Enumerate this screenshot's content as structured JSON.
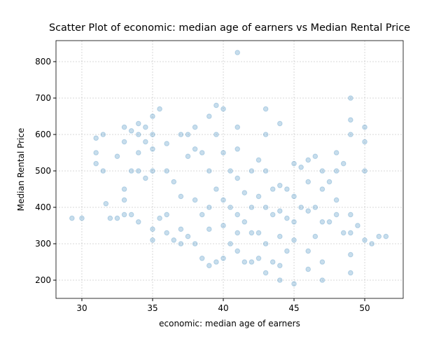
{
  "chart_data": {
    "type": "scatter",
    "title": "Scatter Plot of economic: median age of earners vs Median Rental Price",
    "x_label": "economic: median age of earners",
    "y_label": "Median Rental Price",
    "xlim": [
      28.17,
      52.72
    ],
    "ylim": [
      150,
      857.7
    ],
    "xticks": [
      30,
      35,
      40,
      45,
      50
    ],
    "yticks": [
      200,
      300,
      400,
      500,
      600,
      700,
      800
    ],
    "grid": true,
    "color": "#1f77b4",
    "alpha": 0.25,
    "series": [
      {
        "name": "Median Rental Price",
        "color": "#1f77b4",
        "x": [
          29.3,
          30,
          31,
          31,
          31,
          31.5,
          31.5,
          31.7,
          32,
          32.5,
          32.5,
          33,
          33,
          33,
          33,
          33,
          33.5,
          33.5,
          33.5,
          34,
          34,
          34,
          34,
          34,
          34.5,
          34.5,
          34.5,
          35,
          35,
          35,
          35,
          35,
          35,
          35.5,
          35.5,
          36,
          36,
          36,
          36,
          36.5,
          36.5,
          37,
          37,
          37,
          37,
          37.5,
          37.5,
          37.5,
          38,
          38,
          38,
          38,
          38.5,
          38.5,
          38.5,
          39,
          39,
          39,
          39,
          39,
          39.5,
          39.5,
          39.5,
          39.5,
          40,
          40,
          40,
          40,
          40,
          40.5,
          40.5,
          40.5,
          41,
          41,
          41,
          41,
          41,
          41,
          41,
          41.5,
          41.5,
          41.5,
          42,
          42,
          42,
          42,
          42.5,
          42.5,
          42.5,
          42.5,
          43,
          43,
          43,
          43,
          43,
          43,
          43.5,
          43.5,
          43.5,
          44,
          44,
          44,
          44,
          44,
          44,
          44.5,
          44.5,
          44.5,
          45,
          45,
          45,
          45,
          45,
          45.5,
          45.5,
          46,
          46,
          46,
          46,
          46,
          46.5,
          46.5,
          46.5,
          47,
          47,
          47,
          47,
          47,
          47.5,
          47.5,
          48,
          48,
          48,
          48,
          48.5,
          48.5,
          49,
          49,
          49,
          49,
          49,
          49,
          49,
          49.5,
          50,
          50,
          50,
          50,
          50.5,
          51,
          51.5
        ],
        "values": [
          370,
          370,
          590,
          550,
          520,
          600,
          500,
          410,
          370,
          370,
          540,
          620,
          580,
          450,
          420,
          380,
          610,
          500,
          380,
          630,
          600,
          550,
          500,
          360,
          620,
          580,
          480,
          650,
          600,
          560,
          500,
          340,
          310,
          670,
          370,
          575,
          500,
          380,
          330,
          470,
          310,
          600,
          430,
          340,
          300,
          600,
          540,
          320,
          620,
          560,
          420,
          300,
          550,
          380,
          260,
          650,
          500,
          400,
          340,
          240,
          680,
          600,
          450,
          250,
          670,
          550,
          420,
          350,
          260,
          500,
          400,
          300,
          825,
          620,
          560,
          480,
          380,
          330,
          280,
          440,
          360,
          250,
          500,
          400,
          330,
          250,
          530,
          430,
          330,
          260,
          670,
          600,
          500,
          400,
          300,
          220,
          450,
          380,
          250,
          630,
          460,
          390,
          320,
          240,
          200,
          450,
          370,
          280,
          520,
          430,
          360,
          310,
          190,
          510,
          400,
          530,
          470,
          390,
          280,
          230,
          540,
          400,
          320,
          500,
          450,
          360,
          250,
          200,
          470,
          360,
          550,
          500,
          420,
          380,
          520,
          330,
          700,
          640,
          600,
          380,
          330,
          270,
          220,
          350,
          620,
          580,
          500,
          310,
          300,
          320,
          320
        ]
      }
    ]
  }
}
